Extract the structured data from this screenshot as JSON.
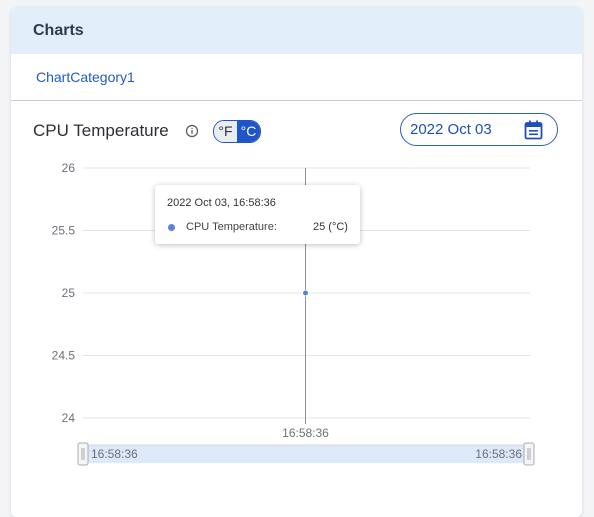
{
  "header": {
    "title": "Charts"
  },
  "category": {
    "label": "ChartCategory1"
  },
  "chart_header": {
    "title": "CPU Temperature",
    "unit_toggle": {
      "options": [
        "°F",
        "°C"
      ],
      "selected": "°C"
    },
    "date_picker": {
      "value": "2022 Oct 03"
    }
  },
  "tooltip": {
    "time": "2022 Oct 03, 16:58:36",
    "series_label": "CPU Temperature:",
    "value": "25 (°C)"
  },
  "slider": {
    "start_label": "16:58:36",
    "end_label": "16:58:36"
  },
  "colors": {
    "accent": "#1e56c8",
    "series": "#5b7fe0",
    "header_bg": "#e3eefb",
    "slider_fill": "#dde8f8"
  },
  "chart_data": {
    "type": "line",
    "x": [
      "16:58:36"
    ],
    "series": [
      {
        "name": "CPU Temperature",
        "values": [
          25
        ]
      }
    ],
    "y_ticks": [
      "26",
      "25.5",
      "25",
      "24.5",
      "24"
    ],
    "x_ticks": [
      "16:58:36"
    ],
    "ylim": [
      24,
      26
    ],
    "grid": true
  }
}
